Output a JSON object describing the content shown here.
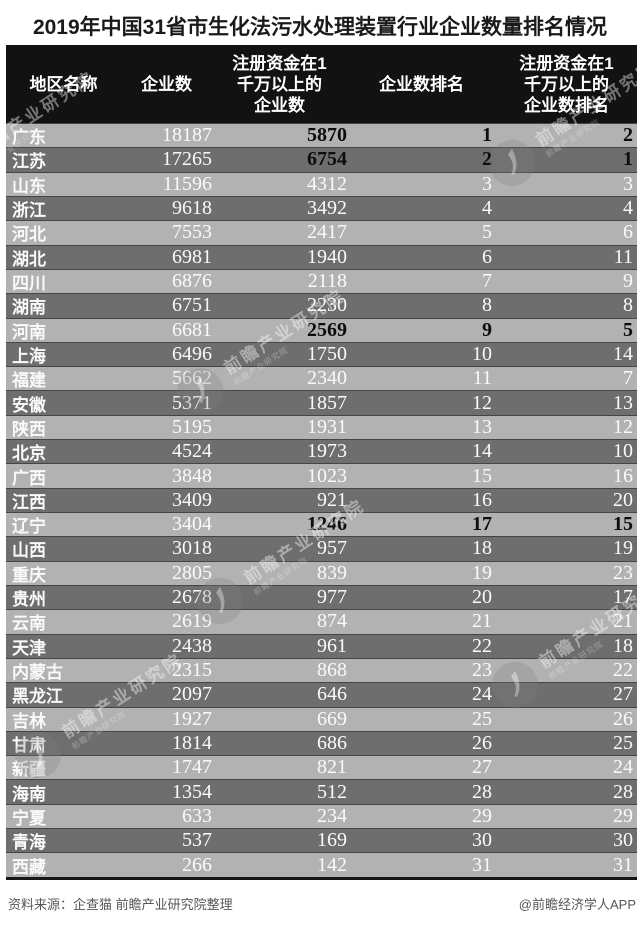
{
  "title": "2019年中国31省市生化法污水处理装置行业企业数量排名情况",
  "footer": {
    "source_note": "资料来源：企查猫 前瞻产业研究院整理",
    "credit": "@前瞻经济学人APP"
  },
  "watermark": {
    "text": "前瞻产业研究院"
  },
  "colors": {
    "header_bg": "#121212",
    "row_light": "#b2b2b2",
    "row_dark": "#6e6e6e",
    "row_border": "#454545",
    "row_text": "#fafafa",
    "highlight_text": "#0d0d0d",
    "title_text": "#1a1a1a",
    "footer_text": "#565656"
  },
  "table": {
    "header_lines": [
      [
        "地区名称"
      ],
      [
        "企业数"
      ],
      [
        "注册资金在1",
        "千万以上的",
        "企业数"
      ],
      [
        "企业数排名"
      ],
      [
        "注册资金在1",
        "千万以上的",
        "企业数排名"
      ]
    ],
    "highlight_rows": [
      0,
      1,
      8,
      16
    ]
  },
  "chart_data": {
    "type": "table",
    "title": "2019年中国31省市生化法污水处理装置行业企业数量排名情况",
    "columns": [
      "地区名称",
      "企业数",
      "注册资金在1千万以上的企业数",
      "企业数排名",
      "注册资金在1千万以上的企业数排名"
    ],
    "rows": [
      [
        "广东",
        18187,
        5870,
        1,
        2
      ],
      [
        "江苏",
        17265,
        6754,
        2,
        1
      ],
      [
        "山东",
        11596,
        4312,
        3,
        3
      ],
      [
        "浙江",
        9618,
        3492,
        4,
        4
      ],
      [
        "河北",
        7553,
        2417,
        5,
        6
      ],
      [
        "湖北",
        6981,
        1940,
        6,
        11
      ],
      [
        "四川",
        6876,
        2118,
        7,
        9
      ],
      [
        "湖南",
        6751,
        2230,
        8,
        8
      ],
      [
        "河南",
        6681,
        2569,
        9,
        5
      ],
      [
        "上海",
        6496,
        1750,
        10,
        14
      ],
      [
        "福建",
        5662,
        2340,
        11,
        7
      ],
      [
        "安徽",
        5371,
        1857,
        12,
        13
      ],
      [
        "陕西",
        5195,
        1931,
        13,
        12
      ],
      [
        "北京",
        4524,
        1973,
        14,
        10
      ],
      [
        "广西",
        3848,
        1023,
        15,
        16
      ],
      [
        "江西",
        3409,
        921,
        16,
        20
      ],
      [
        "辽宁",
        3404,
        1246,
        17,
        15
      ],
      [
        "山西",
        3018,
        957,
        18,
        19
      ],
      [
        "重庆",
        2805,
        839,
        19,
        23
      ],
      [
        "贵州",
        2678,
        977,
        20,
        17
      ],
      [
        "云南",
        2619,
        874,
        21,
        21
      ],
      [
        "天津",
        2438,
        961,
        22,
        18
      ],
      [
        "内蒙古",
        2315,
        868,
        23,
        22
      ],
      [
        "黑龙江",
        2097,
        646,
        24,
        27
      ],
      [
        "吉林",
        1927,
        669,
        25,
        26
      ],
      [
        "甘肃",
        1814,
        686,
        26,
        25
      ],
      [
        "新疆",
        1747,
        821,
        27,
        24
      ],
      [
        "海南",
        1354,
        512,
        28,
        28
      ],
      [
        "宁夏",
        633,
        234,
        29,
        29
      ],
      [
        "青海",
        537,
        169,
        30,
        30
      ],
      [
        "西藏",
        266,
        142,
        31,
        31
      ]
    ]
  }
}
